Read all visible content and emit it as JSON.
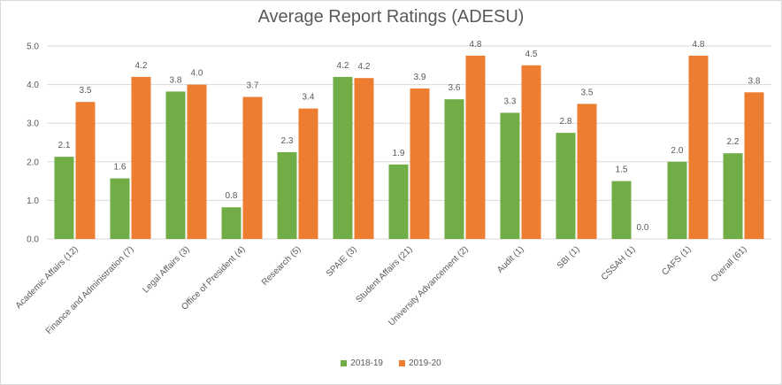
{
  "chart_data": {
    "type": "bar",
    "title": "Average Report Ratings (ADESU)",
    "categories": [
      "Academic Affairs (12)",
      "Finance and Administration (7)",
      "Legal Affairs (3)",
      "Office of President (4)",
      "Research (5)",
      "SPAIE (3)",
      "Student Affairs (21)",
      "University Advancement (2)",
      "Audit (1)",
      "SBI (1)",
      "CSSAH (1)",
      "CAFS (1)",
      "Overall (61)"
    ],
    "series": [
      {
        "name": "2018-19",
        "color": "#70ad47",
        "values": [
          2.13,
          1.57,
          3.82,
          0.82,
          2.25,
          4.2,
          1.93,
          3.62,
          3.27,
          2.75,
          1.5,
          2.0,
          2.22
        ],
        "labels": [
          "2.1",
          "1.6",
          "3.8",
          "0.8",
          "2.3",
          "4.2",
          "1.9",
          "3.6",
          "3.3",
          "2.8",
          "1.5",
          "2.0",
          "2.2"
        ]
      },
      {
        "name": "2019-20",
        "color": "#ed7d31",
        "values": [
          3.55,
          4.2,
          4.0,
          3.68,
          3.38,
          4.17,
          3.9,
          4.75,
          4.5,
          3.5,
          0.0,
          4.75,
          3.8
        ],
        "labels": [
          "3.5",
          "4.2",
          "4.0",
          "3.7",
          "3.4",
          "4.2",
          "3.9",
          "4.8",
          "4.5",
          "3.5",
          "0.0",
          "4.8",
          "3.8"
        ]
      }
    ],
    "ylim": [
      0,
      5
    ],
    "yticks": [
      "0.0",
      "1.0",
      "2.0",
      "3.0",
      "4.0",
      "5.0"
    ],
    "grid": true,
    "legend_position": "bottom"
  }
}
